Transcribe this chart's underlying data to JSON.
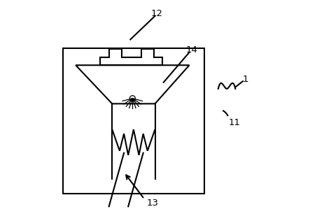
{
  "bg_color": "#ffffff",
  "line_color": "#000000",
  "fig_width": 4.43,
  "fig_height": 3.09,
  "dpi": 100
}
